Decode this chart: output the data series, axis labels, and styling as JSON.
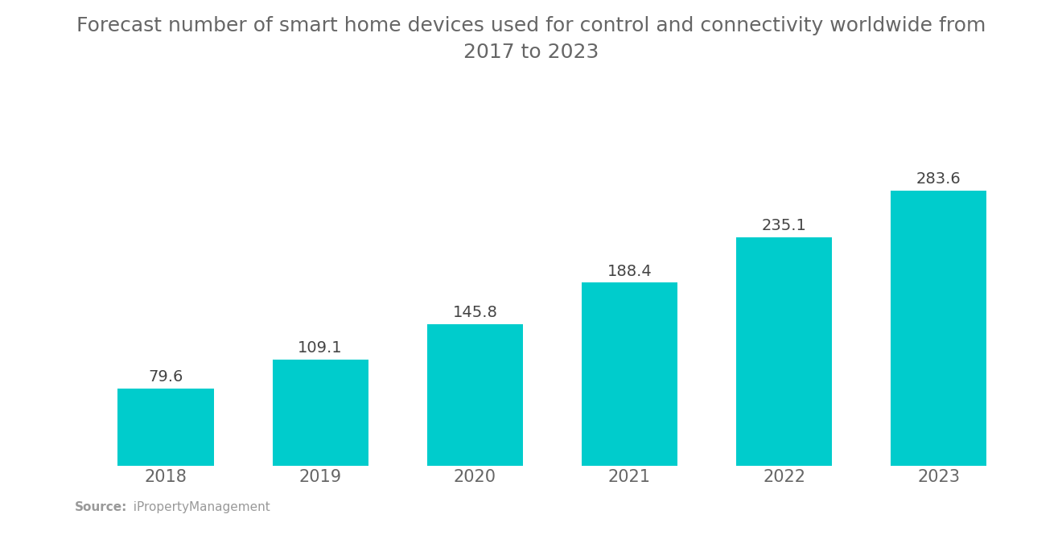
{
  "title": "Forecast number of smart home devices used for control and connectivity worldwide from\n2017 to 2023",
  "categories": [
    "2018",
    "2019",
    "2020",
    "2021",
    "2022",
    "2023"
  ],
  "values": [
    79.6,
    109.1,
    145.8,
    188.4,
    235.1,
    283.6
  ],
  "bar_color": "#00CCCC",
  "title_color": "#666666",
  "label_color": "#444444",
  "tick_color": "#666666",
  "source_bold": "Source:",
  "source_text": "  iPropertyManagement",
  "source_color": "#999999",
  "background_color": "#ffffff",
  "bar_label_fontsize": 14,
  "title_fontsize": 18,
  "tick_fontsize": 15,
  "bar_width": 0.62,
  "ylim_max": 320
}
